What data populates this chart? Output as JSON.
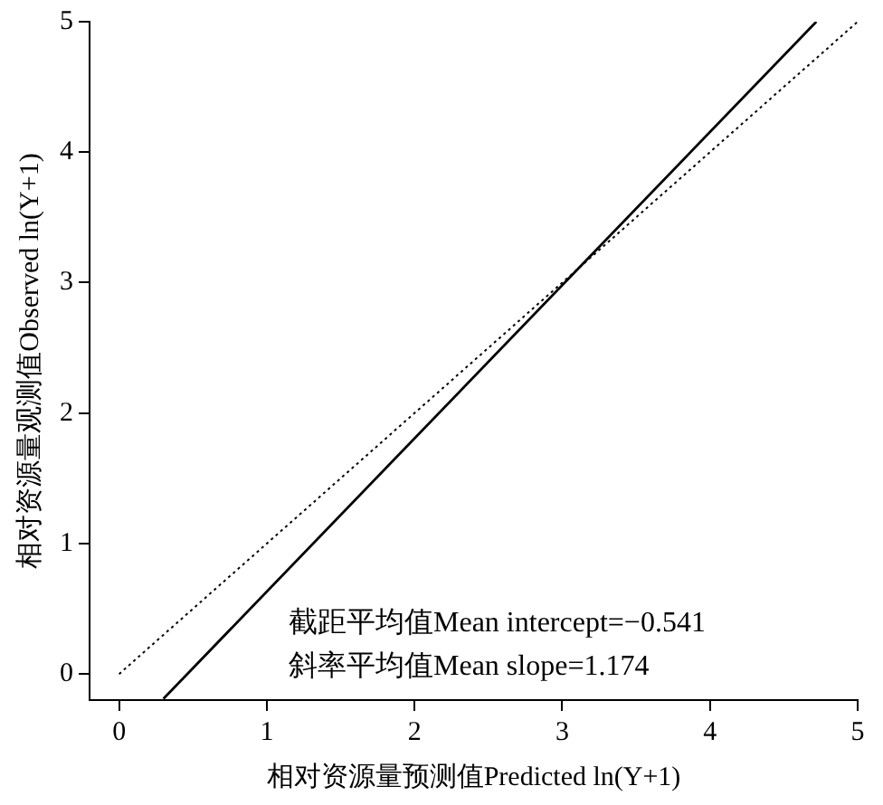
{
  "chart_data": {
    "type": "line",
    "xlabel": "相对资源量预测值Predicted ln(Y+1)",
    "ylabel": "相对资源量观测值Observed ln(Y+1)",
    "xlim": [
      -0.2,
      5
    ],
    "ylim": [
      -0.2,
      5
    ],
    "xticks": [
      0,
      1,
      2,
      3,
      4,
      5
    ],
    "yticks": [
      0,
      1,
      2,
      3,
      4,
      5
    ],
    "grid": false,
    "legend": false,
    "marker": "none",
    "series": [
      {
        "color": "#000000",
        "x": [
          0.3,
          4.72
        ],
        "values": [
          -0.19,
          5
        ],
        "line_style": "solid"
      },
      {
        "color": "#000000",
        "x": [
          0,
          5
        ],
        "values": [
          0,
          5
        ],
        "line_style": "dotted"
      }
    ],
    "annotations": [
      "截距平均值Mean intercept=−0.541",
      "斜率平均值Mean slope=1.174"
    ]
  }
}
